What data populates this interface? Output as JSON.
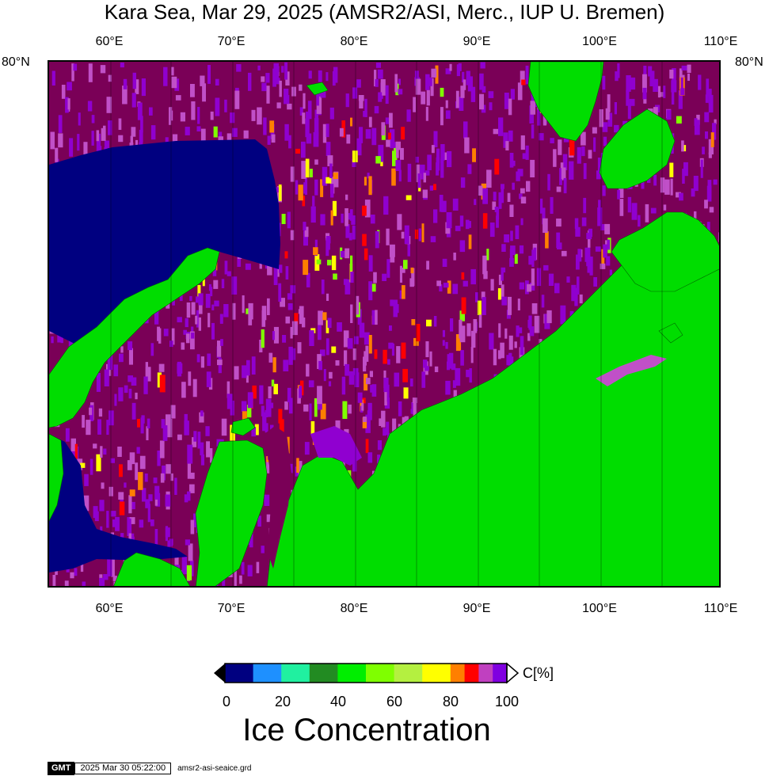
{
  "title": "Kara Sea, Mar 29, 2025 (AMSR2/ASI, Merc., IUP U. Bremen)",
  "lon_labels": [
    "60°E",
    "70°E",
    "80°E",
    "90°E",
    "100°E",
    "110°E"
  ],
  "lat_label_left": "80°N",
  "lat_label_right": "80°N",
  "colorbar": {
    "unit": "C[%]",
    "ticks": [
      "0",
      "20",
      "40",
      "60",
      "80",
      "100"
    ],
    "title": "Ice Concentration",
    "colors": [
      "#000080",
      "#1e90ff",
      "#20f0a0",
      "#228b22",
      "#00ee00",
      "#7fff00",
      "#b4f040",
      "#ffff00",
      "#ff7f00",
      "#ff0000",
      "#c040c0",
      "#8000e0"
    ]
  },
  "map_colors": {
    "land": "#00dd00",
    "open_water": "#000080",
    "dense_ice": "#7a0057",
    "ice_purple": "#9000d0",
    "ice_magenta": "#c050c8"
  },
  "footer": {
    "logo": "GMT",
    "timestamp": "2025 Mar 30 05:22:00",
    "grid_file": "amsr2-asi-seaice.grd"
  }
}
